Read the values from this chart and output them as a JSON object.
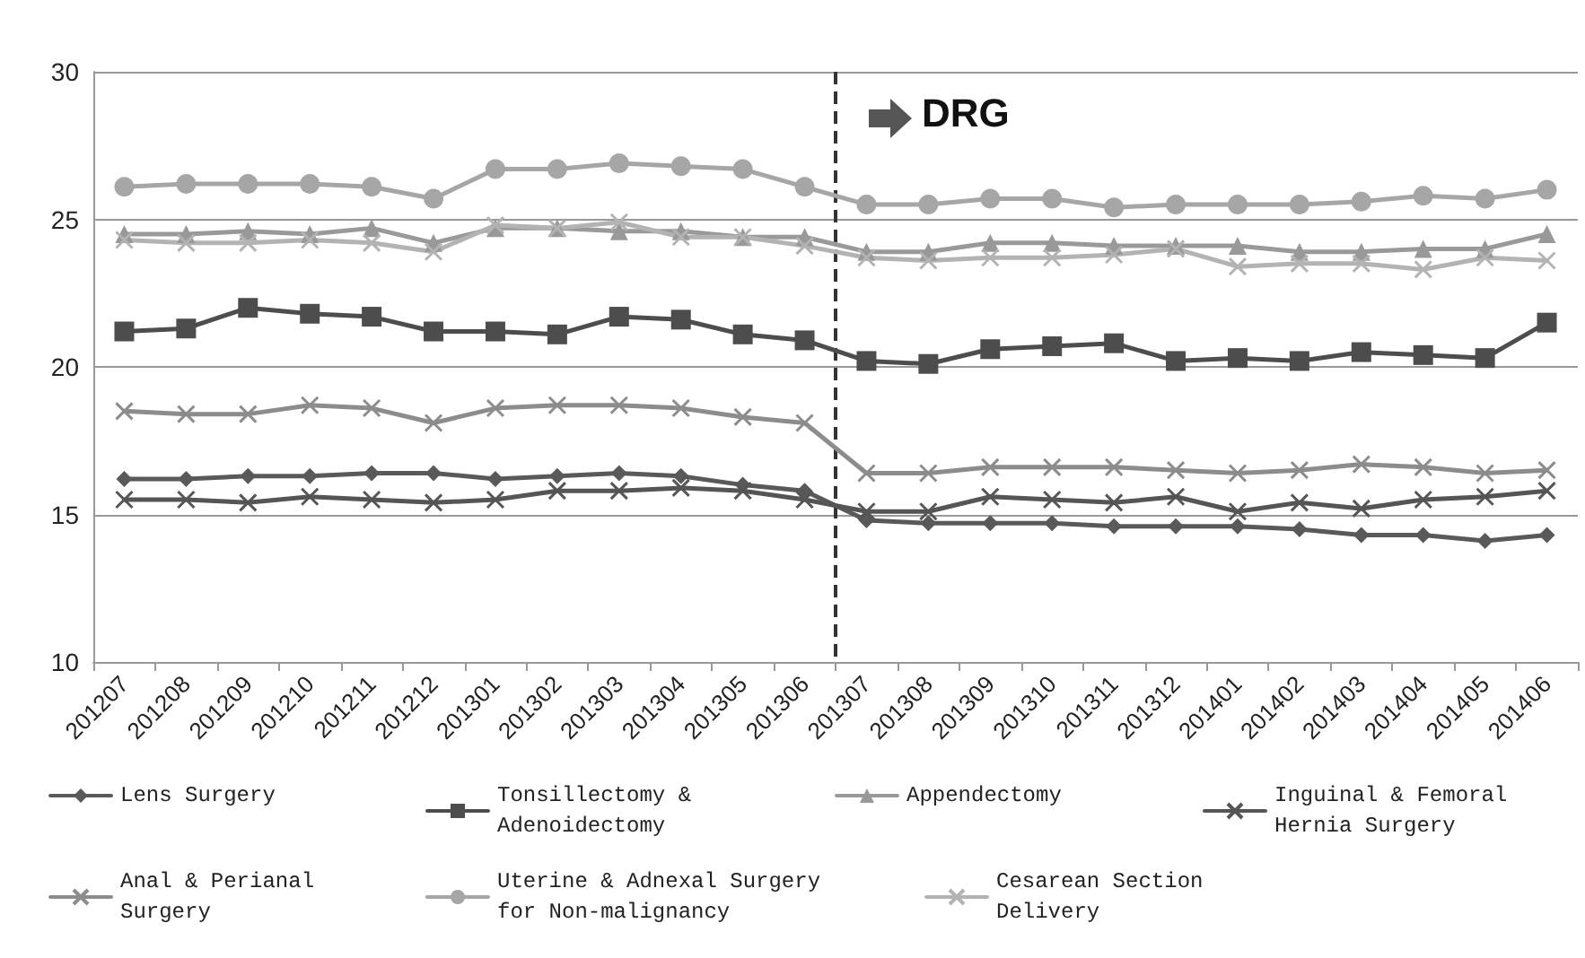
{
  "chart_data": {
    "type": "line",
    "categories": [
      "201207",
      "201208",
      "201209",
      "201210",
      "201211",
      "201212",
      "201301",
      "201302",
      "201303",
      "201304",
      "201305",
      "201306",
      "201307",
      "201308",
      "201309",
      "201310",
      "201311",
      "201312",
      "201401",
      "201402",
      "201403",
      "201404",
      "201405",
      "201406"
    ],
    "ylim": [
      10,
      30
    ],
    "yticks": [
      10,
      15,
      20,
      25,
      30
    ],
    "grid": "y",
    "legend": "bottom",
    "line_style": "solid",
    "ref_lines": [
      {
        "axis": "x",
        "value": "201307",
        "label": "DRG",
        "color": "#333333",
        "line_style": "dashed"
      }
    ],
    "series": [
      {
        "name": "Lens Surgery",
        "color": "#595959",
        "marker": "diamond",
        "values": [
          16.2,
          16.2,
          16.3,
          16.3,
          16.4,
          16.4,
          16.2,
          16.3,
          16.4,
          16.3,
          16.0,
          15.8,
          14.8,
          14.7,
          14.7,
          14.7,
          14.6,
          14.6,
          14.6,
          14.5,
          14.3,
          14.3,
          14.1,
          14.3
        ]
      },
      {
        "name": "Tonsillectomy & Adenoidectomy",
        "color": "#4d4d4d",
        "marker": "square",
        "values": [
          21.2,
          21.3,
          22.0,
          21.8,
          21.7,
          21.2,
          21.2,
          21.1,
          21.7,
          21.6,
          21.1,
          20.9,
          20.2,
          20.1,
          20.6,
          20.7,
          20.8,
          20.2,
          20.3,
          20.2,
          20.5,
          20.4,
          20.3,
          21.5
        ]
      },
      {
        "name": "Appendectomy",
        "color": "#999999",
        "marker": "triangle",
        "values": [
          24.5,
          24.5,
          24.6,
          24.5,
          24.7,
          24.2,
          24.7,
          24.7,
          24.6,
          24.6,
          24.4,
          24.4,
          23.9,
          23.9,
          24.2,
          24.2,
          24.1,
          24.1,
          24.1,
          23.9,
          23.9,
          24.0,
          24.0,
          24.5
        ]
      },
      {
        "name": "Inguinal & Femoral Hernia Surgery",
        "color": "#555555",
        "marker": "cross",
        "values": [
          15.5,
          15.5,
          15.4,
          15.6,
          15.5,
          15.4,
          15.5,
          15.8,
          15.8,
          15.9,
          15.8,
          15.5,
          15.1,
          15.1,
          15.6,
          15.5,
          15.4,
          15.6,
          15.1,
          15.4,
          15.2,
          15.5,
          15.6,
          15.8
        ]
      },
      {
        "name": "Anal & Perianal Surgery",
        "color": "#8c8c8c",
        "marker": "cross",
        "values": [
          18.5,
          18.4,
          18.4,
          18.7,
          18.6,
          18.1,
          18.6,
          18.7,
          18.7,
          18.6,
          18.3,
          18.1,
          16.4,
          16.4,
          16.6,
          16.6,
          16.6,
          16.5,
          16.4,
          16.5,
          16.7,
          16.6,
          16.4,
          16.5
        ]
      },
      {
        "name": "Uterine & Adnexal Surgery for Non-malignancy",
        "color": "#a6a6a6",
        "marker": "circle",
        "values": [
          26.1,
          26.2,
          26.2,
          26.2,
          26.1,
          25.7,
          26.7,
          26.7,
          26.9,
          26.8,
          26.7,
          26.1,
          25.5,
          25.5,
          25.7,
          25.7,
          25.4,
          25.5,
          25.5,
          25.5,
          25.6,
          25.8,
          25.7,
          26.0
        ]
      },
      {
        "name": "Cesarean Section Delivery",
        "color": "#b3b3b3",
        "marker": "cross",
        "values": [
          24.3,
          24.2,
          24.2,
          24.3,
          24.2,
          23.9,
          24.8,
          24.7,
          24.9,
          24.4,
          24.4,
          24.1,
          23.7,
          23.6,
          23.7,
          23.7,
          23.8,
          24.0,
          23.4,
          23.5,
          23.5,
          23.3,
          23.7,
          23.6
        ]
      }
    ]
  }
}
